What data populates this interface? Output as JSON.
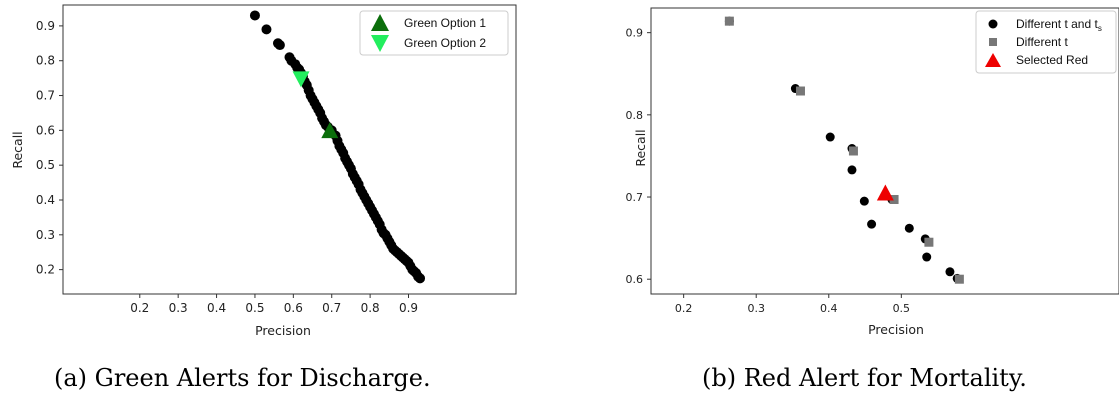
{
  "chart_data": [
    {
      "type": "scatter",
      "caption": "(a) Green Alerts for Discharge.",
      "xlabel": "Precision",
      "ylabel": "Recall",
      "xlim": [
        0.0,
        1.18
      ],
      "ylim": [
        0.13,
        0.96
      ],
      "xticks": [
        "0.2",
        "0.3",
        "0.4",
        "0.5",
        "0.6",
        "0.7",
        "0.8",
        "0.9"
      ],
      "xtick_values": [
        0.2,
        0.3,
        0.4,
        0.5,
        0.6,
        0.7,
        0.8,
        0.9
      ],
      "yticks": [
        "0.2",
        "0.3",
        "0.4",
        "0.5",
        "0.6",
        "0.7",
        "0.8",
        "0.9"
      ],
      "ytick_values": [
        0.2,
        0.3,
        0.4,
        0.5,
        0.6,
        0.7,
        0.8,
        0.9
      ],
      "grid": false,
      "legend_position": "top-right",
      "series": [
        {
          "name": "",
          "color": "#000000",
          "marker": "circle",
          "x": [
            0.5,
            0.53,
            0.56,
            0.565,
            0.59,
            0.595,
            0.605,
            0.61,
            0.615,
            0.62,
            0.625,
            0.63,
            0.635,
            0.64,
            0.645,
            0.65,
            0.655,
            0.66,
            0.665,
            0.67,
            0.675,
            0.68,
            0.685,
            0.69,
            0.7,
            0.71,
            0.715,
            0.72,
            0.725,
            0.73,
            0.735,
            0.74,
            0.745,
            0.75,
            0.755,
            0.76,
            0.765,
            0.77,
            0.775,
            0.78,
            0.785,
            0.79,
            0.795,
            0.8,
            0.805,
            0.81,
            0.815,
            0.82,
            0.825,
            0.83,
            0.835,
            0.84,
            0.845,
            0.85,
            0.855,
            0.86,
            0.865,
            0.87,
            0.875,
            0.88,
            0.885,
            0.89,
            0.895,
            0.9,
            0.905,
            0.91,
            0.915,
            0.92,
            0.925,
            0.93
          ],
          "y": [
            0.93,
            0.89,
            0.85,
            0.845,
            0.81,
            0.8,
            0.79,
            0.78,
            0.775,
            0.765,
            0.755,
            0.74,
            0.73,
            0.715,
            0.7,
            0.69,
            0.68,
            0.67,
            0.66,
            0.65,
            0.635,
            0.625,
            0.615,
            0.61,
            0.6,
            0.585,
            0.57,
            0.555,
            0.545,
            0.535,
            0.52,
            0.51,
            0.5,
            0.49,
            0.475,
            0.465,
            0.455,
            0.445,
            0.43,
            0.42,
            0.41,
            0.4,
            0.39,
            0.38,
            0.37,
            0.36,
            0.35,
            0.34,
            0.33,
            0.315,
            0.305,
            0.3,
            0.29,
            0.28,
            0.27,
            0.26,
            0.255,
            0.25,
            0.245,
            0.24,
            0.235,
            0.23,
            0.225,
            0.22,
            0.21,
            0.2,
            0.195,
            0.19,
            0.18,
            0.175
          ]
        },
        {
          "name": "Green Option 1",
          "color": "#0b6e0b",
          "marker": "triangle-up",
          "x": [
            0.695
          ],
          "y": [
            0.595
          ]
        },
        {
          "name": "Green Option 2",
          "color": "#22ee5e",
          "marker": "triangle-down",
          "x": [
            0.62
          ],
          "y": [
            0.752
          ]
        }
      ]
    },
    {
      "type": "scatter",
      "caption": "(b) Red Alert for Mortality.",
      "xlabel": "Precision",
      "ylabel": "Recall",
      "xlim": [
        0.155,
        0.8
      ],
      "ylim": [
        0.582,
        0.93
      ],
      "xticks": [
        "0.2",
        "0.3",
        "0.4",
        "0.5"
      ],
      "xtick_values": [
        0.2,
        0.3,
        0.4,
        0.5
      ],
      "yticks": [
        "0.6",
        "0.7",
        "0.8",
        "0.9"
      ],
      "ytick_values": [
        0.6,
        0.7,
        0.8,
        0.9
      ],
      "grid": false,
      "legend_position": "top-right",
      "series": [
        {
          "name": "Different t and t_s",
          "legend_main": "Different t and t",
          "legend_sub": "s",
          "color": "#000000",
          "marker": "circle",
          "x": [
            0.263,
            0.354,
            0.402,
            0.432,
            0.432,
            0.449,
            0.459,
            0.487,
            0.511,
            0.533,
            0.535,
            0.567,
            0.577
          ],
          "y": [
            0.914,
            0.832,
            0.773,
            0.759,
            0.733,
            0.695,
            0.667,
            0.697,
            0.662,
            0.649,
            0.627,
            0.609,
            0.601
          ]
        },
        {
          "name": "Different t",
          "legend_main": "Different t",
          "color": "#777777",
          "marker": "square",
          "x": [
            0.263,
            0.361,
            0.434,
            0.49,
            0.538,
            0.58
          ],
          "y": [
            0.914,
            0.829,
            0.756,
            0.697,
            0.645,
            0.6
          ]
        },
        {
          "name": "Selected Red",
          "color": "#ee0000",
          "marker": "triangle-up",
          "x": [
            0.478
          ],
          "y": [
            0.703
          ]
        }
      ]
    }
  ]
}
